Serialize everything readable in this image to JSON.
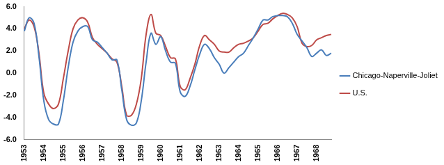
{
  "chart_data": {
    "type": "line",
    "categories": [
      "1953",
      null,
      null,
      null,
      "1954",
      null,
      null,
      null,
      "1955",
      null,
      null,
      null,
      "1956",
      null,
      null,
      null,
      "1957",
      null,
      null,
      null,
      "1958",
      null,
      null,
      null,
      "1959",
      null,
      null,
      null,
      "1960",
      null,
      null,
      null,
      "1961",
      null,
      null,
      null,
      "1962",
      null,
      null,
      null,
      "1963",
      null,
      null,
      null,
      "1964",
      null,
      null,
      null,
      "1965",
      null,
      null,
      null,
      "1966",
      null,
      null,
      null,
      "1967",
      null,
      null,
      null,
      "1968",
      null,
      null,
      null
    ],
    "series": [
      {
        "name": "Chicago-Naperville-Joliet",
        "color": "#4a7ebb",
        "values": [
          3.8,
          5.0,
          4.5,
          1.5,
          -2.5,
          -4.2,
          -4.6,
          -4.6,
          -2.5,
          0.5,
          2.8,
          3.8,
          4.2,
          4.2,
          3.0,
          2.8,
          2.3,
          1.8,
          1.2,
          1.2,
          -1.5,
          -4.2,
          -4.7,
          -4.5,
          -2.5,
          1.0,
          3.6,
          2.6,
          3.3,
          2.0,
          1.0,
          0.9,
          -1.7,
          -2.1,
          -1.2,
          0.3,
          1.7,
          2.6,
          2.2,
          1.4,
          0.8,
          0.0,
          0.5,
          1.0,
          1.5,
          1.8,
          2.5,
          3.2,
          4.0,
          4.8,
          4.8,
          5.1,
          5.2,
          5.2,
          5.1,
          4.5,
          3.5,
          2.9,
          2.3,
          1.5,
          1.8,
          2.1,
          1.6,
          1.8
        ]
      },
      {
        "name": "U.S.",
        "color": "#be4b48",
        "values": [
          4.0,
          4.8,
          4.2,
          1.8,
          -1.8,
          -2.8,
          -3.2,
          -2.8,
          -0.5,
          2.0,
          4.0,
          4.8,
          5.0,
          4.6,
          3.2,
          2.6,
          2.2,
          1.8,
          1.3,
          1.0,
          -1.2,
          -3.8,
          -3.8,
          -2.8,
          -0.5,
          3.5,
          5.3,
          3.6,
          3.4,
          2.4,
          1.4,
          1.3,
          -1.2,
          -1.5,
          -0.5,
          0.8,
          2.5,
          3.4,
          3.0,
          2.6,
          2.0,
          1.9,
          1.9,
          2.3,
          2.6,
          2.7,
          2.9,
          3.2,
          3.8,
          4.4,
          4.5,
          4.9,
          5.2,
          5.4,
          5.3,
          5.0,
          4.2,
          2.7,
          2.4,
          2.5,
          3.0,
          3.2,
          3.4,
          3.5
        ]
      }
    ],
    "ylim": [
      -6,
      6
    ],
    "yticks": [
      {
        "value": -6,
        "label": "-6.0"
      },
      {
        "value": -4,
        "label": "-4.0"
      },
      {
        "value": -2,
        "label": "-2.0"
      },
      {
        "value": 0,
        "label": "0.0"
      },
      {
        "value": 2,
        "label": "2.0"
      },
      {
        "value": 4,
        "label": "4.0"
      },
      {
        "value": 6,
        "label": "6.0"
      }
    ],
    "grid": false,
    "legend": "right",
    "line_style": "solid"
  }
}
